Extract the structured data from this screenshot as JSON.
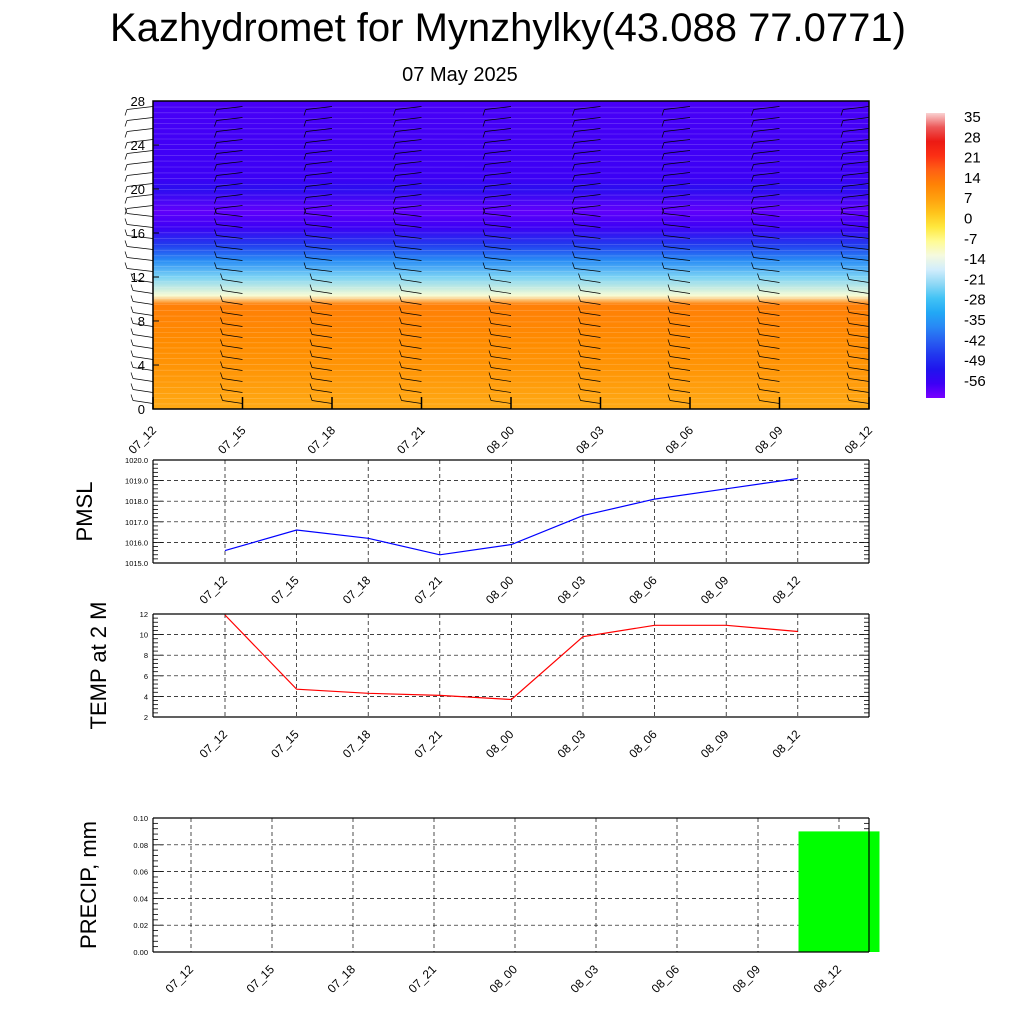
{
  "header": {
    "title": "Kazhydromet for Mynzhylky(43.088 77.0771)",
    "date": "07 May 2025"
  },
  "colors": {
    "pressure_line": "#0000ff",
    "temperature_line": "#ff0000",
    "precip_bar": "#00ff00",
    "frame": "#000000",
    "grid": "#000000"
  },
  "chart_data": [
    {
      "type": "heatmap",
      "title": "Kazhydromet for Mynzhylky(43.088 77.0771)",
      "subtitle": "07 May 2025",
      "x": [
        "07_12",
        "07_15",
        "07_18",
        "07_21",
        "08_00",
        "08_03",
        "08_06",
        "08_09",
        "08_12"
      ],
      "yticks": [
        0,
        4,
        8,
        12,
        16,
        20,
        24,
        28
      ],
      "ylim": [
        0,
        28
      ],
      "profile": {
        "heights": [
          0,
          3,
          6,
          9.5,
          10.3,
          12,
          13.5,
          15,
          16.5,
          18,
          20,
          21,
          28
        ],
        "values": [
          7,
          10,
          12,
          14,
          -10,
          -22,
          -35,
          -45,
          -55,
          -58,
          -52,
          -55,
          -56
        ]
      },
      "colorbar": {
        "labels": [
          "35",
          "28",
          "21",
          "14",
          "7",
          "0",
          "-7",
          "-14",
          "-21",
          "-28",
          "-35",
          "-42",
          "-49",
          "-56"
        ],
        "range": [
          -60,
          38
        ]
      },
      "wind_barbs": true
    },
    {
      "type": "line",
      "ylabel": "PMSL",
      "categories": [
        "07_12",
        "07_15",
        "07_18",
        "07_21",
        "08_00",
        "08_03",
        "08_06",
        "08_09",
        "08_12"
      ],
      "series": [
        {
          "values": [
            1015.6,
            1016.6,
            1016.2,
            1015.4,
            1015.9,
            1017.3,
            1018.1,
            1018.6,
            1019.1
          ]
        }
      ],
      "ylim": [
        1015,
        1020
      ],
      "yticks": [
        "1015.0",
        "1016.0",
        "1017.0",
        "1018.0",
        "1019.0",
        "1020.0"
      ],
      "grid": true
    },
    {
      "type": "line",
      "ylabel": "TEMP at 2 M",
      "categories": [
        "07_12",
        "07_15",
        "07_18",
        "07_21",
        "08_00",
        "08_03",
        "08_06",
        "08_09",
        "08_12"
      ],
      "series": [
        {
          "values": [
            11.9,
            4.7,
            4.3,
            4.1,
            3.7,
            9.8,
            10.9,
            10.9,
            10.3
          ]
        }
      ],
      "ylim": [
        2,
        12
      ],
      "yticks": [
        "2",
        "4",
        "6",
        "8",
        "10",
        "12"
      ],
      "grid": true
    },
    {
      "type": "bar",
      "ylabel": "PRECIP, mm",
      "categories": [
        "07_12",
        "07_15",
        "07_18",
        "07_21",
        "08_00",
        "08_03",
        "08_06",
        "08_09",
        "08_12"
      ],
      "values": [
        0,
        0,
        0,
        0,
        0,
        0,
        0,
        0,
        0.09
      ],
      "ylim": [
        0,
        0.1
      ],
      "yticks": [
        "0.00",
        "0.02",
        "0.04",
        "0.06",
        "0.08",
        "0.10"
      ],
      "grid": true
    }
  ]
}
